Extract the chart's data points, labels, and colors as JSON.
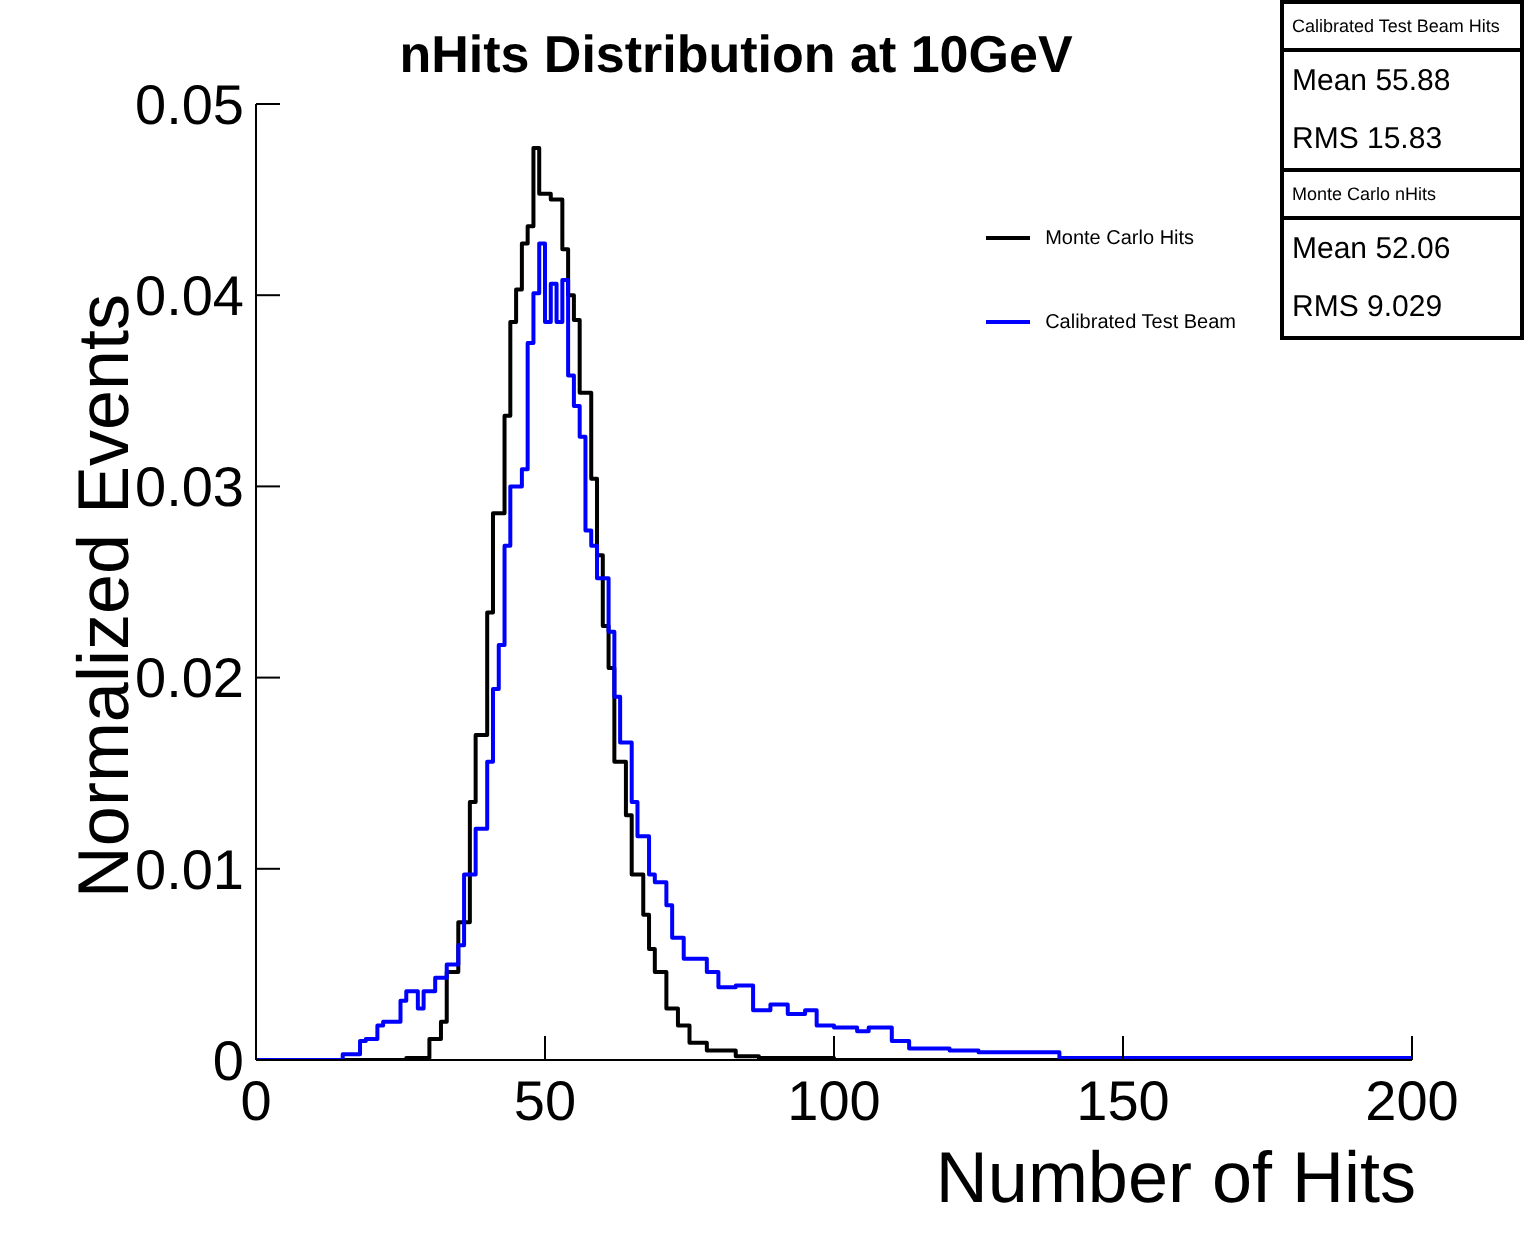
{
  "chart_data": {
    "type": "step",
    "title": "nHits Distribution at 10GeV",
    "xlabel": "Number of Hits",
    "ylabel": "Normalized Events",
    "xlim": [
      0,
      200
    ],
    "xticks": [
      0,
      50,
      100,
      150,
      200
    ],
    "ylim": [
      0,
      0.05
    ],
    "yticks": [
      0,
      0.01,
      0.02,
      0.03,
      0.04,
      0.05
    ],
    "legend": "top right",
    "marker": "none",
    "annotations": [
      "Calibrated Test Beam Hits",
      "Mean 55.88",
      "RMS 15.83",
      "Monte Carlo nHits",
      "Mean 52.06",
      "RMS 9.029"
    ],
    "series": [
      {
        "name": "Monte Carlo Hits",
        "color": "#000000",
        "x": [
          0,
          26,
          30,
          32,
          33,
          35,
          37,
          38,
          40,
          41,
          43,
          44,
          45,
          46,
          47,
          48,
          49,
          51,
          53,
          54,
          55,
          56,
          58,
          59,
          60,
          61,
          62,
          64,
          65,
          67,
          68,
          69,
          71,
          73,
          75,
          78,
          83,
          87,
          100,
          200
        ],
        "values": [
          0,
          0.0001,
          0.0011,
          0.002,
          0.0046,
          0.0072,
          0.0135,
          0.017,
          0.0234,
          0.0286,
          0.0337,
          0.0386,
          0.0403,
          0.0427,
          0.0436,
          0.0477,
          0.0453,
          0.045,
          0.0424,
          0.04,
          0.0387,
          0.0349,
          0.0304,
          0.0264,
          0.0227,
          0.0205,
          0.0156,
          0.0128,
          0.0097,
          0.0076,
          0.0058,
          0.0046,
          0.0027,
          0.0018,
          0.0009,
          0.0005,
          0.0002,
          0.0001,
          0,
          0
        ]
      },
      {
        "name": "Calibrated Test Beam",
        "color": "#0000ff",
        "x": [
          0,
          15,
          18,
          19,
          21,
          22,
          25,
          26,
          28,
          29,
          31,
          33,
          35,
          36,
          38,
          40,
          41,
          42,
          43,
          44,
          46,
          47,
          48,
          49,
          50,
          51,
          52,
          53,
          54,
          55,
          56,
          57,
          58,
          59,
          61,
          62,
          63,
          65,
          66,
          68,
          69,
          71,
          72,
          74,
          78,
          80,
          83,
          86,
          89,
          92,
          95,
          97,
          100,
          104,
          106,
          110,
          113,
          117,
          120,
          125,
          130,
          134,
          139,
          200
        ],
        "values": [
          0,
          0.0003,
          0.001,
          0.0011,
          0.0018,
          0.002,
          0.0031,
          0.0036,
          0.0027,
          0.0036,
          0.0043,
          0.005,
          0.006,
          0.0097,
          0.0121,
          0.0156,
          0.0194,
          0.0217,
          0.0269,
          0.03,
          0.0309,
          0.0375,
          0.0401,
          0.0427,
          0.0386,
          0.0406,
          0.0386,
          0.0408,
          0.0358,
          0.0342,
          0.0326,
          0.0277,
          0.0269,
          0.0252,
          0.0224,
          0.019,
          0.0166,
          0.0135,
          0.0117,
          0.0097,
          0.0093,
          0.0081,
          0.0064,
          0.0053,
          0.0046,
          0.0038,
          0.0039,
          0.0026,
          0.0029,
          0.0024,
          0.0026,
          0.0018,
          0.0017,
          0.0015,
          0.0017,
          0.001,
          0.0006,
          0.0006,
          0.0005,
          0.0004,
          0.0004,
          0.0004,
          0.0001,
          0
        ]
      }
    ]
  }
}
